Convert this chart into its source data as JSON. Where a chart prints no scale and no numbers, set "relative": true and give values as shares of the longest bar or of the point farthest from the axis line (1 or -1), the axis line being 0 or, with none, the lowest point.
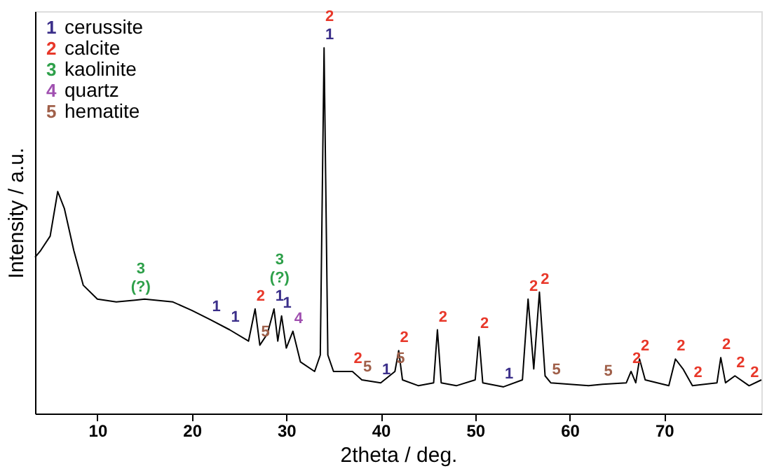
{
  "chart_data": {
    "type": "line",
    "relative": true,
    "xlabel": "2theta / deg.",
    "ylabel": "Intensity / a.u.",
    "xlim": [
      3.4,
      80.3
    ],
    "xticks": [
      10,
      20,
      30,
      40,
      50,
      60,
      70
    ],
    "grid": false,
    "marker": "none",
    "line_style": "solid",
    "tick_labels": "x",
    "colors": [
      "#3b2f8a",
      "#e8382a",
      "#2ea04a",
      "#a050b0",
      "#a0604a"
    ],
    "series": [
      {
        "color": "#000000",
        "x": [
          3.4,
          4,
          5,
          5.8,
          6.5,
          7.5,
          8.5,
          10,
          12,
          14,
          15,
          18,
          20,
          22,
          24,
          26,
          26.7,
          27.2,
          28,
          28.7,
          29.1,
          29.5,
          30,
          30.7,
          31.5,
          33,
          33.6,
          34.0,
          34.4,
          35,
          37,
          38,
          40,
          41.5,
          41.9,
          42.3,
          44,
          45.6,
          46,
          46.4,
          48,
          50,
          50.4,
          50.8,
          53,
          55,
          55.6,
          56.2,
          56.8,
          57.4,
          58,
          62,
          63.5,
          66,
          66.5,
          67,
          67.4,
          68,
          70.5,
          71.2,
          72,
          73,
          75.6,
          76,
          76.5,
          77.5,
          79,
          80.3
        ],
        "values": [
          0.427,
          0.446,
          0.485,
          0.607,
          0.561,
          0.446,
          0.351,
          0.313,
          0.305,
          0.31,
          0.313,
          0.305,
          0.282,
          0.256,
          0.229,
          0.198,
          0.286,
          0.187,
          0.218,
          0.286,
          0.198,
          0.267,
          0.179,
          0.225,
          0.141,
          0.115,
          0.16,
          1.0,
          0.16,
          0.115,
          0.115,
          0.092,
          0.084,
          0.115,
          0.172,
          0.092,
          0.076,
          0.084,
          0.229,
          0.084,
          0.076,
          0.092,
          0.21,
          0.084,
          0.073,
          0.092,
          0.313,
          0.122,
          0.332,
          0.103,
          0.084,
          0.076,
          0.08,
          0.084,
          0.115,
          0.084,
          0.149,
          0.092,
          0.076,
          0.149,
          0.122,
          0.076,
          0.084,
          0.153,
          0.084,
          0.103,
          0.076,
          0.092
        ]
      }
    ],
    "annotations": [
      "1 cerussite",
      "2 calcite",
      "3 kaolinite",
      "4 quartz",
      "5 hematite",
      {
        "text": "1",
        "x": 34.0,
        "y": 1.0
      },
      {
        "text": "2",
        "x": 34.0,
        "y": 1.0
      },
      {
        "text": "(?)",
        "x": 14,
        "y": 0.31
      },
      {
        "text": "3",
        "x": 14,
        "y": 0.31
      },
      {
        "text": "1",
        "x": 28.7,
        "y": 0.286
      },
      {
        "text": "(?)",
        "x": 28.7,
        "y": 0.286
      },
      {
        "text": "3",
        "x": 28.7,
        "y": 0.286
      },
      {
        "text": "1",
        "x": 22,
        "y": 0.256
      },
      {
        "text": "1",
        "x": 24,
        "y": 0.229
      },
      {
        "text": "2",
        "x": 26.7,
        "y": 0.286
      },
      {
        "text": "5",
        "x": 27.2,
        "y": 0.187
      },
      {
        "text": "1",
        "x": 29.5,
        "y": 0.267
      },
      {
        "text": "4",
        "x": 30.7,
        "y": 0.225
      },
      {
        "text": "2",
        "x": 37,
        "y": 0.115
      },
      {
        "text": "5",
        "x": 38,
        "y": 0.092
      },
      {
        "text": "1",
        "x": 40,
        "y": 0.084
      },
      {
        "text": "5",
        "x": 41.5,
        "y": 0.115
      },
      {
        "text": "2",
        "x": 41.9,
        "y": 0.172
      },
      {
        "text": "2",
        "x": 46,
        "y": 0.229
      },
      {
        "text": "2",
        "x": 50.4,
        "y": 0.21
      },
      {
        "text": "1",
        "x": 53,
        "y": 0.073
      },
      {
        "text": "2",
        "x": 55.6,
        "y": 0.313
      },
      {
        "text": "2",
        "x": 56.8,
        "y": 0.332
      },
      {
        "text": "5",
        "x": 58,
        "y": 0.084
      },
      {
        "text": "5",
        "x": 63.5,
        "y": 0.08
      },
      {
        "text": "2",
        "x": 66.5,
        "y": 0.115
      },
      {
        "text": "2",
        "x": 67.4,
        "y": 0.149
      },
      {
        "text": "2",
        "x": 71.2,
        "y": 0.149
      },
      {
        "text": "2",
        "x": 73,
        "y": 0.076
      },
      {
        "text": "2",
        "x": 76,
        "y": 0.153
      },
      {
        "text": "2",
        "x": 77.5,
        "y": 0.103
      },
      {
        "text": "2",
        "x": 79,
        "y": 0.076
      }
    ]
  }
}
